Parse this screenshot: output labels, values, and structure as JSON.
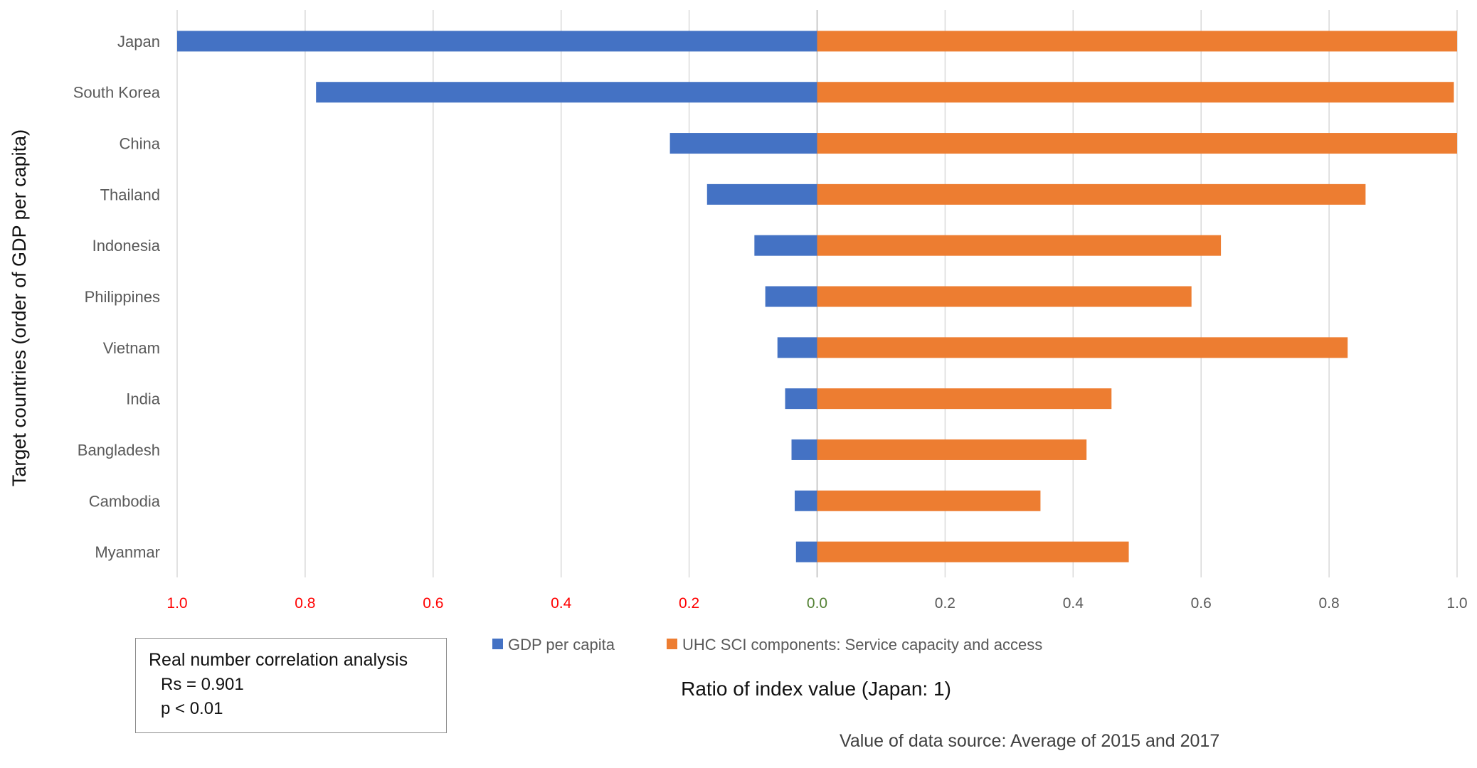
{
  "chart_data": {
    "type": "bar",
    "orientation": "horizontal-diverging",
    "categories": [
      "Japan",
      "South Korea",
      "China",
      "Thailand",
      "Indonesia",
      "Philippines",
      "Vietnam",
      "India",
      "Bangladesh",
      "Cambodia",
      "Myanmar"
    ],
    "series": [
      {
        "name": "GDP per capita",
        "color": "#4472C4",
        "side": "left",
        "values": [
          1.0,
          0.783,
          0.23,
          0.172,
          0.098,
          0.081,
          0.062,
          0.05,
          0.04,
          0.035,
          0.033
        ]
      },
      {
        "name": "UHC SCI components: Service capacity and access",
        "color": "#ED7D31",
        "side": "right",
        "values": [
          1.0,
          0.995,
          1.0,
          0.857,
          0.631,
          0.585,
          0.829,
          0.46,
          0.421,
          0.349,
          0.487
        ]
      }
    ],
    "xlim": [
      -1.0,
      1.0
    ],
    "x_ticks_left": [
      "1.0",
      "0.8",
      "0.6",
      "0.4",
      "0.2"
    ],
    "x_tick_center": "0.0",
    "x_ticks_right": [
      "0.2",
      "0.4",
      "0.6",
      "0.8",
      "1.0"
    ],
    "tick_colors": {
      "left": "#FF0000",
      "center": "#548235",
      "right": "#595959"
    },
    "ylabel": "Target countries (order of GDP per capita)",
    "xlabel": "Ratio of index value (Japan: 1)",
    "grid": "vertical",
    "legend_position": "bottom"
  },
  "stats": {
    "title": "Real number correlation analysis",
    "rs": "Rs = 0.901",
    "p": "p < 0.01"
  },
  "note": "Value of data source: Average of 2015 and 2017"
}
